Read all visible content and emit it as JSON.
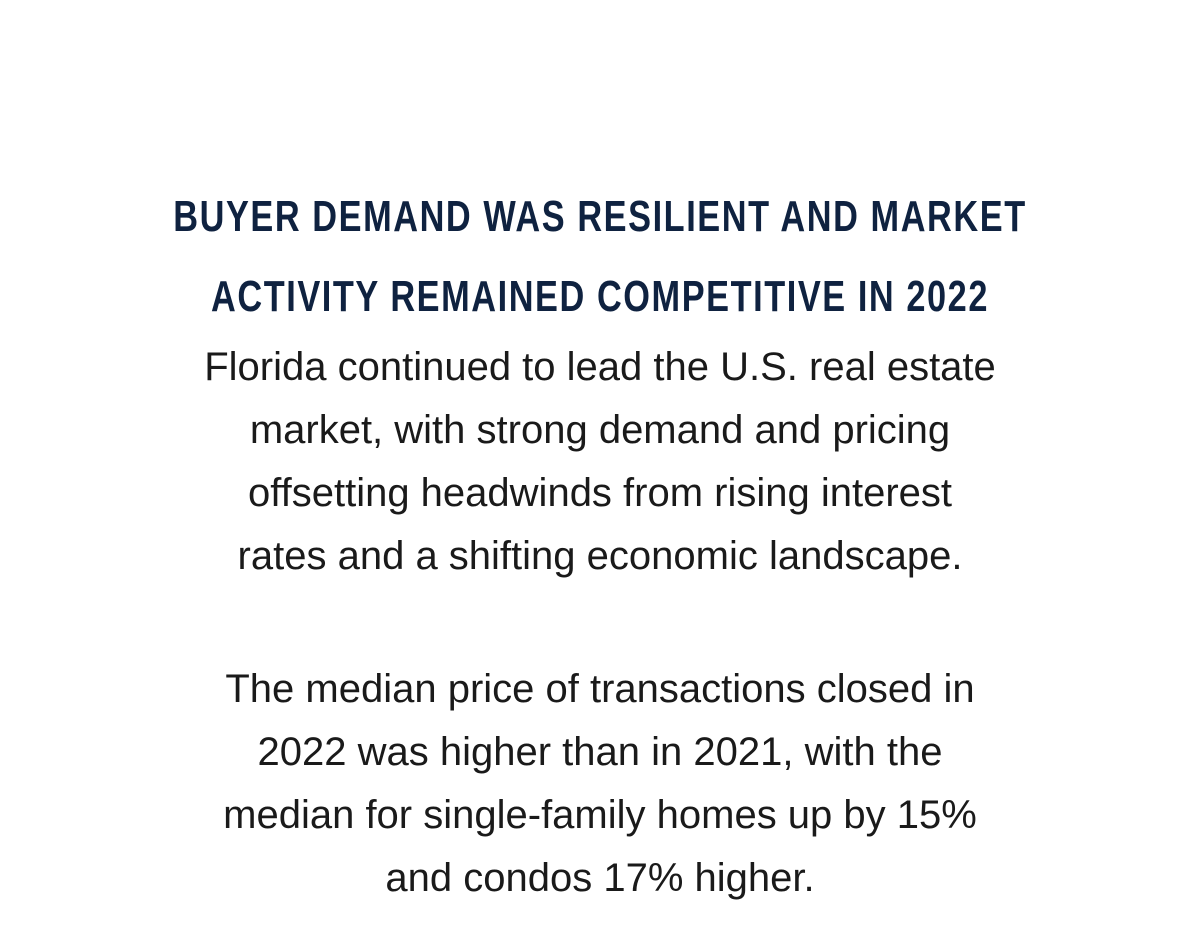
{
  "heading": {
    "lines": [
      "BUYER DEMAND WAS RESILIENT AND MARKET",
      "ACTIVITY REMAINED COMPETITIVE IN 2022"
    ]
  },
  "paragraphs": [
    {
      "lines": [
        "Florida continued to lead the U.S. real estate",
        "market, with strong demand and pricing",
        "offsetting headwinds from rising interest",
        "rates and a shifting economic landscape."
      ]
    },
    {
      "lines": [
        "The median price of transactions closed in",
        "2022 was higher than in 2021, with the",
        "median for single-family homes up by 15%",
        "and condos 17% higher."
      ]
    }
  ]
}
